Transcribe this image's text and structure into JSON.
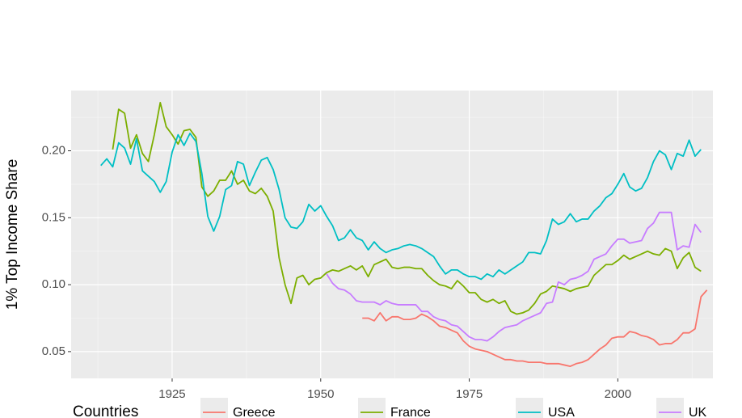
{
  "chart_data": {
    "type": "line",
    "y_label": "1% Top Income Share",
    "legend_title": "Countries",
    "legend_position": "bottom",
    "grid": true,
    "xlim": [
      1908,
      2016
    ],
    "xticks": [
      1925,
      1950,
      1975,
      2000
    ],
    "ylim": [
      0.03,
      0.245
    ],
    "yticks": [
      {
        "value": 0.05,
        "label": "0.05"
      },
      {
        "value": 0.1,
        "label": "0.10"
      },
      {
        "value": 0.15,
        "label": "0.15"
      },
      {
        "value": 0.2,
        "label": "0.20"
      }
    ],
    "series": [
      {
        "name": "Greece",
        "color": "#F8766D",
        "x": [
          1957,
          1958,
          1959,
          1960,
          1961,
          1962,
          1963,
          1964,
          1965,
          1966,
          1967,
          1968,
          1969,
          1970,
          1971,
          1972,
          1973,
          1974,
          1975,
          1976,
          1977,
          1978,
          1979,
          1980,
          1981,
          1982,
          1983,
          1984,
          1985,
          1986,
          1987,
          1988,
          1989,
          1990,
          1991,
          1992,
          1993,
          1994,
          1995,
          1996,
          1997,
          1998,
          1999,
          2000,
          2001,
          2002,
          2003,
          2004,
          2005,
          2006,
          2007,
          2008,
          2009,
          2010,
          2011,
          2012,
          2013,
          2014,
          2015
        ],
        "values": [
          0.075,
          0.075,
          0.073,
          0.079,
          0.073,
          0.076,
          0.076,
          0.074,
          0.074,
          0.075,
          0.078,
          0.076,
          0.073,
          0.069,
          0.068,
          0.066,
          0.064,
          0.058,
          0.054,
          0.052,
          0.051,
          0.05,
          0.048,
          0.046,
          0.044,
          0.044,
          0.043,
          0.043,
          0.042,
          0.042,
          0.042,
          0.041,
          0.041,
          0.041,
          0.04,
          0.039,
          0.041,
          0.042,
          0.044,
          0.048,
          0.052,
          0.055,
          0.06,
          0.061,
          0.061,
          0.065,
          0.064,
          0.062,
          0.061,
          0.059,
          0.055,
          0.056,
          0.056,
          0.059,
          0.064,
          0.064,
          0.067,
          0.091,
          0.096
        ]
      },
      {
        "name": "France",
        "color": "#7CAE00",
        "x": [
          1915,
          1916,
          1917,
          1918,
          1919,
          1920,
          1921,
          1922,
          1923,
          1924,
          1925,
          1926,
          1927,
          1928,
          1929,
          1930,
          1931,
          1932,
          1933,
          1934,
          1935,
          1936,
          1937,
          1938,
          1939,
          1940,
          1941,
          1942,
          1943,
          1944,
          1945,
          1946,
          1947,
          1948,
          1949,
          1950,
          1951,
          1952,
          1953,
          1954,
          1955,
          1956,
          1957,
          1958,
          1959,
          1960,
          1961,
          1962,
          1963,
          1964,
          1965,
          1966,
          1967,
          1968,
          1969,
          1970,
          1971,
          1972,
          1973,
          1974,
          1975,
          1976,
          1977,
          1978,
          1979,
          1980,
          1981,
          1982,
          1983,
          1984,
          1985,
          1986,
          1987,
          1988,
          1989,
          1990,
          1991,
          1992,
          1993,
          1994,
          1995,
          1996,
          1997,
          1998,
          1999,
          2000,
          2001,
          2002,
          2003,
          2004,
          2005,
          2006,
          2007,
          2008,
          2009,
          2010,
          2011,
          2012,
          2013,
          2014
        ],
        "values": [
          0.201,
          0.231,
          0.228,
          0.202,
          0.212,
          0.198,
          0.192,
          0.212,
          0.236,
          0.218,
          0.212,
          0.205,
          0.215,
          0.216,
          0.21,
          0.173,
          0.166,
          0.17,
          0.178,
          0.178,
          0.185,
          0.175,
          0.178,
          0.17,
          0.168,
          0.172,
          0.166,
          0.155,
          0.12,
          0.1,
          0.086,
          0.105,
          0.107,
          0.1,
          0.104,
          0.105,
          0.109,
          0.111,
          0.11,
          0.112,
          0.114,
          0.111,
          0.114,
          0.106,
          0.115,
          0.117,
          0.119,
          0.113,
          0.112,
          0.113,
          0.113,
          0.112,
          0.112,
          0.107,
          0.103,
          0.1,
          0.099,
          0.097,
          0.103,
          0.099,
          0.094,
          0.094,
          0.089,
          0.087,
          0.089,
          0.086,
          0.088,
          0.08,
          0.078,
          0.079,
          0.081,
          0.086,
          0.093,
          0.095,
          0.099,
          0.098,
          0.097,
          0.095,
          0.097,
          0.098,
          0.099,
          0.107,
          0.111,
          0.115,
          0.115,
          0.118,
          0.122,
          0.119,
          0.121,
          0.123,
          0.125,
          0.123,
          0.122,
          0.127,
          0.125,
          0.112,
          0.12,
          0.124,
          0.113,
          0.11
        ]
      },
      {
        "name": "USA",
        "color": "#00BFC4",
        "x": [
          1913,
          1914,
          1915,
          1916,
          1917,
          1918,
          1919,
          1920,
          1921,
          1922,
          1923,
          1924,
          1925,
          1926,
          1927,
          1928,
          1929,
          1930,
          1931,
          1932,
          1933,
          1934,
          1935,
          1936,
          1937,
          1938,
          1939,
          1940,
          1941,
          1942,
          1943,
          1944,
          1945,
          1946,
          1947,
          1948,
          1949,
          1950,
          1951,
          1952,
          1953,
          1954,
          1955,
          1956,
          1957,
          1958,
          1959,
          1960,
          1961,
          1962,
          1963,
          1964,
          1965,
          1966,
          1967,
          1968,
          1969,
          1970,
          1971,
          1972,
          1973,
          1974,
          1975,
          1976,
          1977,
          1978,
          1979,
          1980,
          1981,
          1982,
          1983,
          1984,
          1985,
          1986,
          1987,
          1988,
          1989,
          1990,
          1991,
          1992,
          1993,
          1994,
          1995,
          1996,
          1997,
          1998,
          1999,
          2000,
          2001,
          2002,
          2003,
          2004,
          2005,
          2006,
          2007,
          2008,
          2009,
          2010,
          2011,
          2012,
          2013,
          2014
        ],
        "values": [
          0.189,
          0.194,
          0.188,
          0.206,
          0.202,
          0.19,
          0.209,
          0.185,
          0.181,
          0.177,
          0.169,
          0.177,
          0.199,
          0.212,
          0.204,
          0.213,
          0.207,
          0.183,
          0.151,
          0.14,
          0.151,
          0.171,
          0.174,
          0.192,
          0.19,
          0.174,
          0.184,
          0.193,
          0.195,
          0.186,
          0.171,
          0.15,
          0.143,
          0.142,
          0.147,
          0.16,
          0.155,
          0.159,
          0.151,
          0.144,
          0.133,
          0.135,
          0.141,
          0.135,
          0.133,
          0.126,
          0.132,
          0.127,
          0.124,
          0.126,
          0.127,
          0.129,
          0.13,
          0.129,
          0.127,
          0.124,
          0.121,
          0.114,
          0.108,
          0.111,
          0.111,
          0.108,
          0.106,
          0.106,
          0.104,
          0.108,
          0.106,
          0.111,
          0.108,
          0.111,
          0.114,
          0.117,
          0.124,
          0.124,
          0.123,
          0.133,
          0.149,
          0.145,
          0.147,
          0.153,
          0.147,
          0.149,
          0.149,
          0.155,
          0.159,
          0.165,
          0.168,
          0.175,
          0.183,
          0.173,
          0.17,
          0.172,
          0.18,
          0.192,
          0.2,
          0.197,
          0.186,
          0.198,
          0.196,
          0.208,
          0.196,
          0.201
        ]
      },
      {
        "name": "UK",
        "color": "#C77CFF",
        "x": [
          1951,
          1952,
          1953,
          1954,
          1955,
          1956,
          1957,
          1958,
          1959,
          1960,
          1961,
          1962,
          1963,
          1964,
          1965,
          1966,
          1967,
          1968,
          1969,
          1970,
          1971,
          1972,
          1973,
          1974,
          1975,
          1976,
          1977,
          1978,
          1979,
          1980,
          1981,
          1982,
          1983,
          1984,
          1985,
          1986,
          1987,
          1988,
          1989,
          1990,
          1991,
          1992,
          1993,
          1994,
          1995,
          1996,
          1997,
          1998,
          1999,
          2000,
          2001,
          2002,
          2003,
          2004,
          2005,
          2006,
          2007,
          2008,
          2009,
          2010,
          2011,
          2012,
          2013,
          2014
        ],
        "values": [
          0.108,
          0.101,
          0.097,
          0.096,
          0.093,
          0.088,
          0.087,
          0.087,
          0.087,
          0.085,
          0.088,
          0.086,
          0.085,
          0.085,
          0.085,
          0.085,
          0.08,
          0.08,
          0.076,
          0.074,
          0.073,
          0.07,
          0.069,
          0.065,
          0.061,
          0.059,
          0.059,
          0.058,
          0.061,
          0.065,
          0.068,
          0.069,
          0.07,
          0.073,
          0.075,
          0.077,
          0.079,
          0.086,
          0.087,
          0.102,
          0.1,
          0.104,
          0.105,
          0.107,
          0.11,
          0.119,
          0.121,
          0.123,
          0.129,
          0.134,
          0.134,
          0.131,
          0.132,
          0.133,
          0.142,
          0.146,
          0.154,
          0.154,
          0.154,
          0.126,
          0.129,
          0.128,
          0.145,
          0.139
        ]
      }
    ]
  }
}
